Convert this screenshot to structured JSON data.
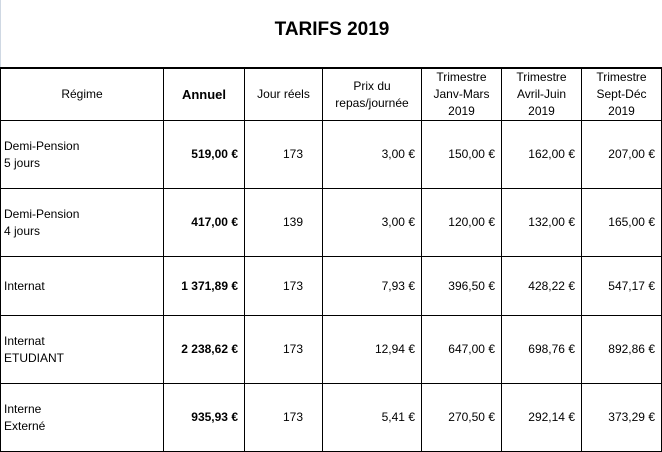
{
  "title": "TARIFS 2019",
  "headers": {
    "regime": "Régime",
    "annuel": "Annuel",
    "jours": "Jour réels",
    "prix": [
      "Prix du",
      "repas/journée"
    ],
    "t1": [
      "Trimestre",
      "Janv-Mars",
      "2019"
    ],
    "t2": [
      "Trimestre",
      "Avril-Juin",
      "2019"
    ],
    "t3": [
      "Trimestre",
      "Sept-Déc",
      "2019"
    ]
  },
  "rows": [
    {
      "regime": [
        "Demi-Pension",
        "5 jours"
      ],
      "annuel": "519,00 €",
      "jours": "173",
      "prix": "3,00 €",
      "t1": "150,00 €",
      "t2": "162,00 €",
      "t3": "207,00 €"
    },
    {
      "regime": [
        "Demi-Pension",
        "4 jours"
      ],
      "annuel": "417,00 €",
      "jours": "139",
      "prix": "3,00 €",
      "t1": "120,00 €",
      "t2": "132,00 €",
      "t3": "165,00 €"
    },
    {
      "regime": [
        "Internat"
      ],
      "annuel": "1 371,89 €",
      "jours": "173",
      "prix": "7,93 €",
      "t1": "396,50 €",
      "t2": "428,22 €",
      "t3": "547,17 €"
    },
    {
      "regime": [
        "Internat",
        "ETUDIANT"
      ],
      "annuel": "2 238,62 €",
      "jours": "173",
      "prix": "12,94 €",
      "t1": "647,00 €",
      "t2": "698,76 €",
      "t3": "892,86 €"
    },
    {
      "regime": [
        "Interne",
        "Externé"
      ],
      "annuel": "935,93 €",
      "jours": "173",
      "prix": "5,41 €",
      "t1": "270,50 €",
      "t2": "292,14 €",
      "t3": "373,29 €"
    }
  ]
}
